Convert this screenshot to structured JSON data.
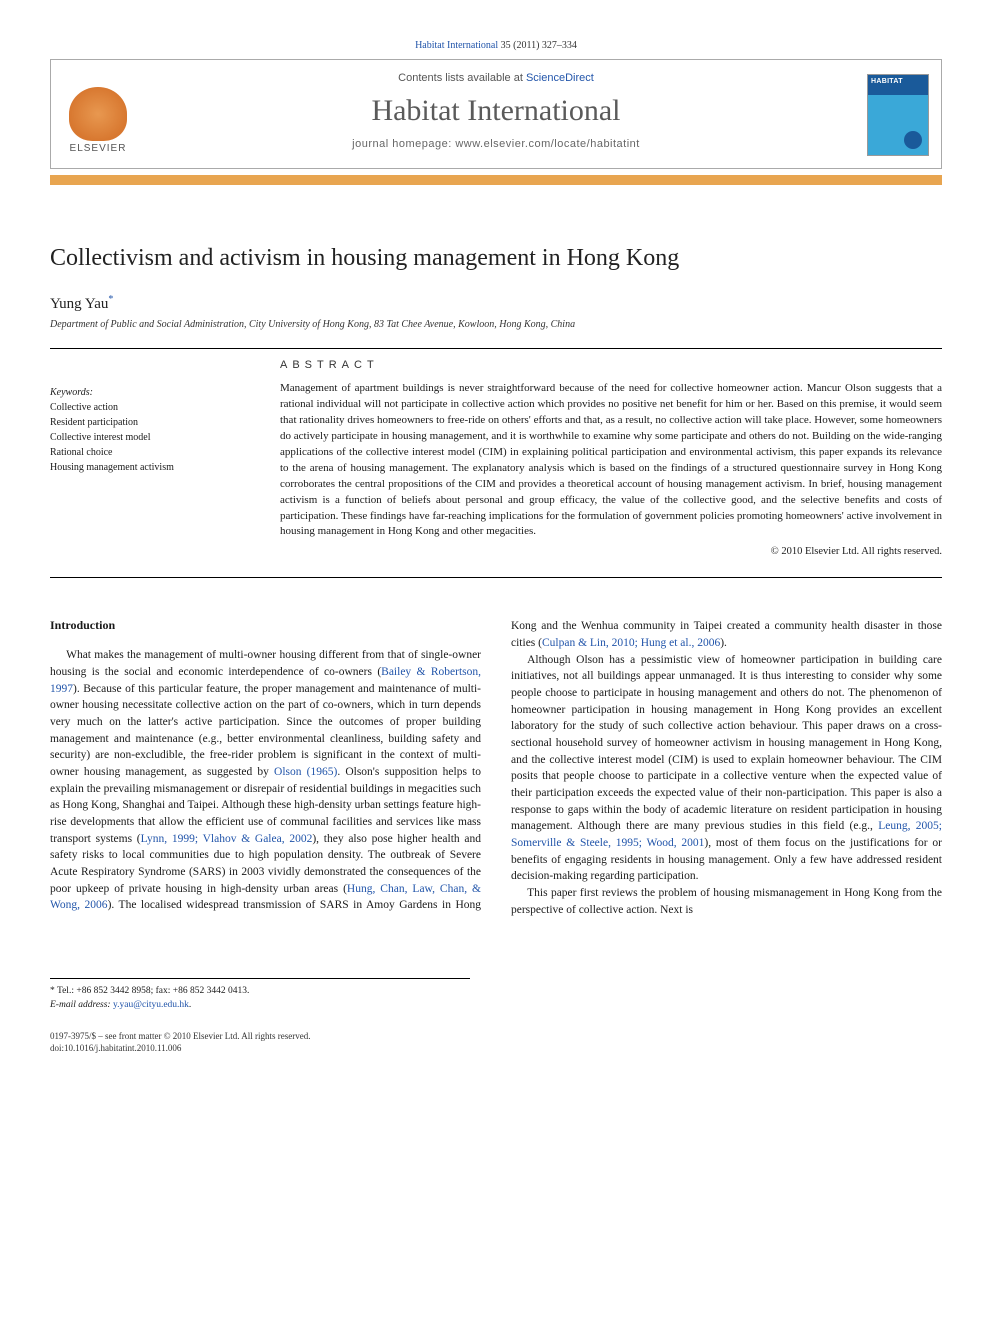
{
  "citation": {
    "prefix": "",
    "journal": "Habitat International",
    "vol_pages": " 35 (2011) 327–334"
  },
  "header": {
    "contents_prefix": "Contents lists available at ",
    "contents_link": "ScienceDirect",
    "journal_title": "Habitat International",
    "homepage_prefix": "journal homepage: ",
    "homepage_url": "www.elsevier.com/locate/habitatint",
    "publisher": "ELSEVIER",
    "cover_title": "HABITAT"
  },
  "article": {
    "title": "Collectivism and activism in housing management in Hong Kong",
    "author": "Yung Yau",
    "author_marker": "*",
    "affiliation": "Department of Public and Social Administration, City University of Hong Kong, 83 Tat Chee Avenue, Kowloon, Hong Kong, China"
  },
  "keywords": {
    "header": "Keywords:",
    "items": [
      "Collective action",
      "Resident participation",
      "Collective interest model",
      "Rational choice",
      "Housing management activism"
    ]
  },
  "abstract": {
    "header": "ABSTRACT",
    "text": "Management of apartment buildings is never straightforward because of the need for collective homeowner action. Mancur Olson suggests that a rational individual will not participate in collective action which provides no positive net benefit for him or her. Based on this premise, it would seem that rationality drives homeowners to free-ride on others' efforts and that, as a result, no collective action will take place. However, some homeowners do actively participate in housing management, and it is worthwhile to examine why some participate and others do not. Building on the wide-ranging applications of the collective interest model (CIM) in explaining political participation and environmental activism, this paper expands its relevance to the arena of housing management. The explanatory analysis which is based on the findings of a structured questionnaire survey in Hong Kong corroborates the central propositions of the CIM and provides a theoretical account of housing management activism. In brief, housing management activism is a function of beliefs about personal and group efficacy, the value of the collective good, and the selective benefits and costs of participation. These findings have far-reaching implications for the formulation of government policies promoting homeowners' active involvement in housing management in Hong Kong and other megacities.",
    "copyright": "© 2010 Elsevier Ltd. All rights reserved."
  },
  "body": {
    "intro_header": "Introduction",
    "p1_a": "What makes the management of multi-owner housing different from that of single-owner housing is the social and economic interdependence of co-owners (",
    "p1_link1": "Bailey & Robertson, 1997",
    "p1_b": "). Because of this particular feature, the proper management and maintenance of multi-owner housing necessitate collective action on the part of co-owners, which in turn depends very much on the latter's active participation. Since the outcomes of proper building management and maintenance (e.g., better environmental cleanliness, building safety and security) are non-excludible, the free-rider problem is significant in the context of multi-owner housing management, as suggested by ",
    "p1_link2": "Olson (1965)",
    "p1_c": ". Olson's supposition helps to explain the prevailing mismanagement or disrepair of residential buildings in megacities such as Hong Kong, Shanghai and Taipei. Although these high-density urban settings feature high-rise developments that allow the efficient use of communal facilities and services like mass transport systems (",
    "p1_link3": "Lynn, 1999; Vlahov & Galea, 2002",
    "p1_d": "), they also pose higher health and safety risks to local communities due to high population density. The outbreak of Severe Acute Respiratory Syndrome (SARS) in 2003 vividly demonstrated the consequences of the poor upkeep of private housing in high-density urban areas (",
    "p1_link4": "Hung, Chan, Law, Chan, & Wong, 2006",
    "p1_e": "). The localised widespread transmission of SARS in Amoy Gardens in Hong Kong and the Wenhua community in Taipei created a community health disaster in those cities (",
    "p1_link5": "Culpan & Lin, 2010; Hung et al., 2006",
    "p1_f": ").",
    "p2_a": "Although Olson has a pessimistic view of homeowner participation in building care initiatives, not all buildings appear unmanaged. It is thus interesting to consider why some people choose to participate in housing management and others do not. The phenomenon of homeowner participation in housing management in Hong Kong provides an excellent laboratory for the study of such collective action behaviour. This paper draws on a cross-sectional household survey of homeowner activism in housing management in Hong Kong, and the collective interest model (CIM) is used to explain homeowner behaviour. The CIM posits that people choose to participate in a collective venture when the expected value of their participation exceeds the expected value of their non-participation. This paper is also a response to gaps within the body of academic literature on resident participation in housing management. Although there are many previous studies in this field (e.g., ",
    "p2_link1": "Leung, 2005; Somerville & Steele, 1995; Wood, 2001",
    "p2_b": "), most of them focus on the justifications for or benefits of engaging residents in housing management. Only a few have addressed resident decision-making regarding participation.",
    "p3": "This paper first reviews the problem of housing mismanagement in Hong Kong from the perspective of collective action. Next is"
  },
  "footer": {
    "corr_marker": "*",
    "corr_tel": " Tel.: +86 852 3442 8958; fax: +86 852 3442 0413.",
    "email_label": "E-mail address: ",
    "email": "y.yau@cityu.edu.hk",
    "issn": "0197-3975/$ – see front matter © 2010 Elsevier Ltd. All rights reserved.",
    "doi": "doi:10.1016/j.habitatint.2010.11.006"
  },
  "colors": {
    "link": "#2255aa",
    "accent_bar": "#e8a550",
    "cover_top": "#1a5a9a",
    "cover_bottom": "#3aa8d8"
  }
}
